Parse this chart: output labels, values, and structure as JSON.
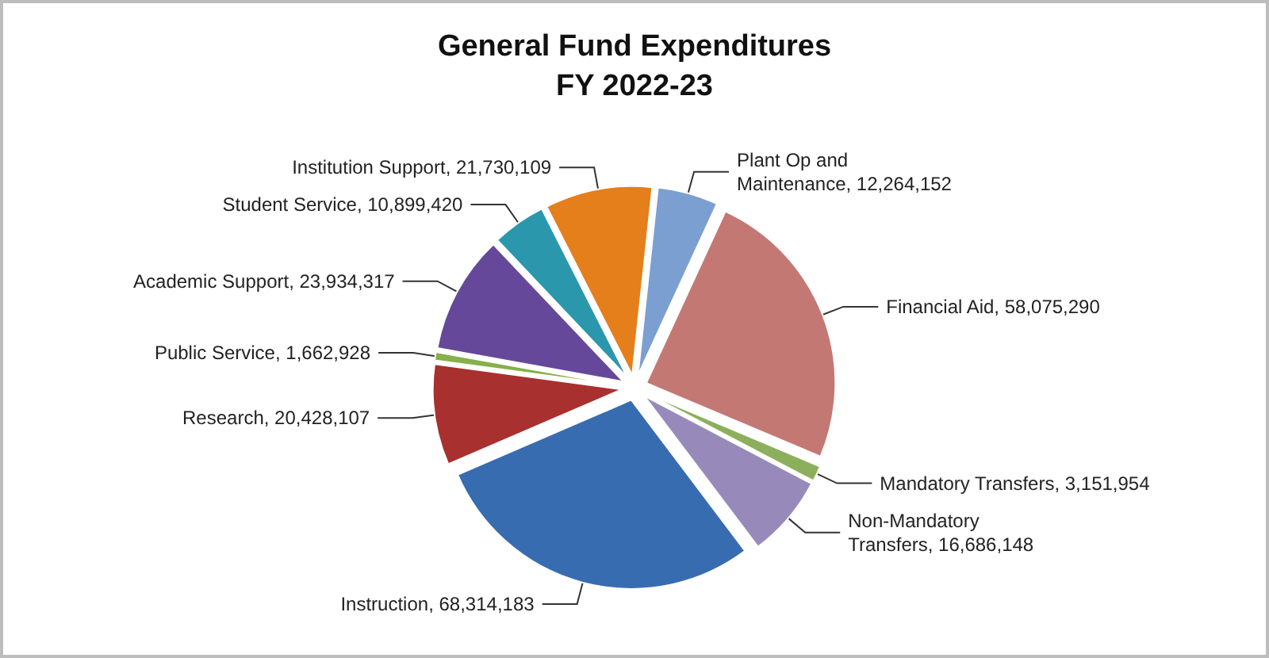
{
  "chart_data": {
    "type": "pie",
    "title": "General Fund Expenditures\nFY 2022-23",
    "categories": [
      "Instruction",
      "Research",
      "Public Service",
      "Academic Support",
      "Student Service",
      "Institution Support",
      "Plant Op and Maintenance",
      "Financial Aid",
      "Mandatory Transfers",
      "Non-Mandatory Transfers"
    ],
    "values": [
      68314183,
      20428107,
      1662928,
      23934317,
      10899420,
      21730109,
      12264152,
      58075290,
      3151954,
      16686148
    ],
    "value_labels": [
      "68,314,183",
      "20,428,107",
      "1,662,928",
      "23,934,317",
      "10,899,420",
      "21,730,109",
      "12,264,152",
      "58,075,290",
      "3,151,954",
      "16,686,148"
    ],
    "colors": [
      "#386cb0",
      "#a8302e",
      "#86b04a",
      "#66489a",
      "#2b97ac",
      "#e47f1c",
      "#7c9fd2",
      "#c47874",
      "#8caf5c",
      "#978abb"
    ]
  }
}
